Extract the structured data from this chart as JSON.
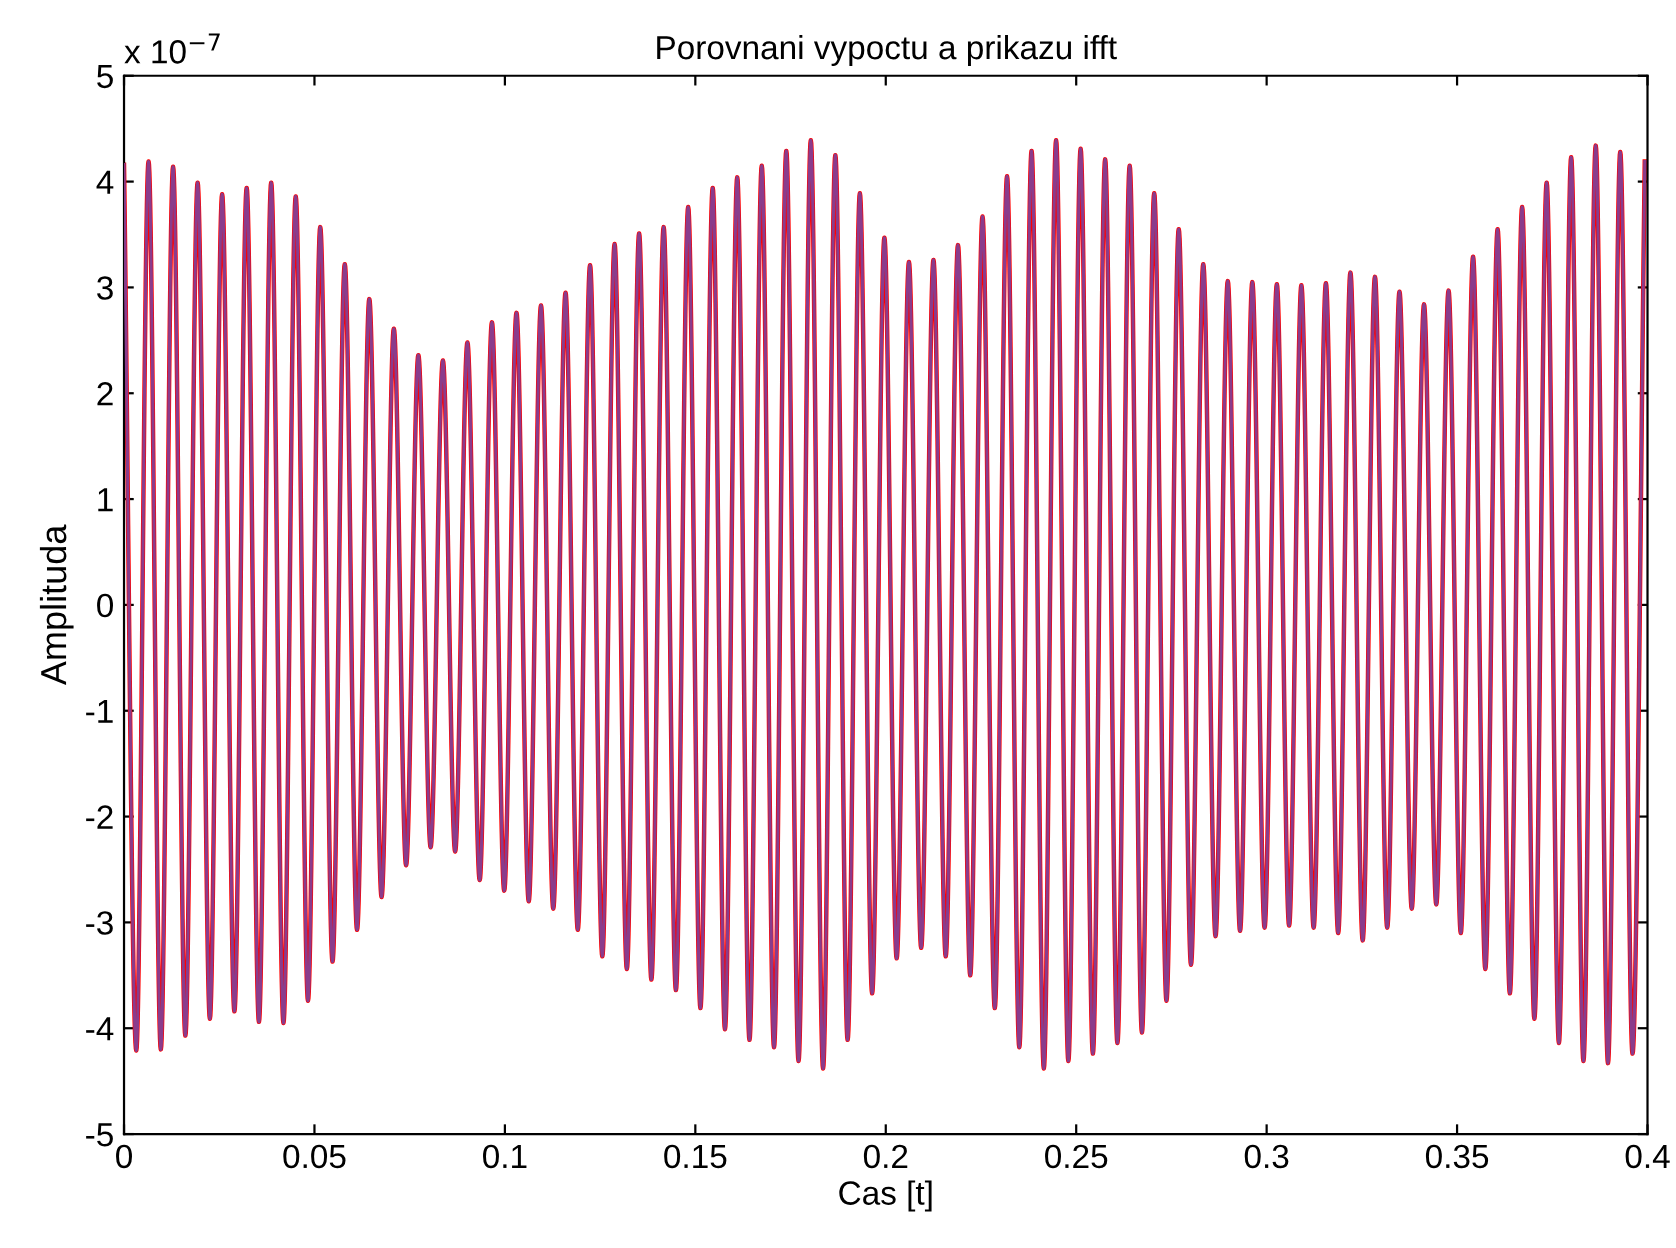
{
  "chart_data": {
    "type": "line",
    "title": "Porovnani vypoctu a prikazu ifft",
    "xlabel": "Cas [t]",
    "ylabel": "Amplituda",
    "annotations": [
      "x 10$^{−7}$"
    ],
    "xlim": [
      0,
      0.4
    ],
    "xticks": [
      0,
      0.05,
      0.1,
      0.15,
      0.2,
      0.25,
      0.3,
      0.35,
      0.4
    ],
    "ylim": [
      -5,
      5
    ],
    "yticks": [
      -5,
      -4,
      -3,
      -2,
      -1,
      0,
      1,
      2,
      3,
      4,
      5
    ],
    "grid": false,
    "legend": false,
    "marker": "none",
    "line_style": "solid",
    "x": [
      0,
      0.00322,
      0.00644,
      0.00966,
      0.01288,
      0.0161,
      0.01932,
      0.02254,
      0.02576,
      0.02898,
      0.0322,
      0.03542,
      0.03864,
      0.04186,
      0.04508,
      0.0483,
      0.05152,
      0.05474,
      0.05796,
      0.06118,
      0.0644,
      0.06762,
      0.07084,
      0.07406,
      0.07728,
      0.0805,
      0.08372,
      0.08694,
      0.09016,
      0.09338,
      0.0966,
      0.09982,
      0.10304,
      0.10626,
      0.10948,
      0.1127,
      0.11592,
      0.11914,
      0.12236,
      0.12558,
      0.1288,
      0.13202,
      0.13524,
      0.13846,
      0.14168,
      0.1449,
      0.14812,
      0.15134,
      0.15456,
      0.15778,
      0.161,
      0.16422,
      0.16744,
      0.17066,
      0.17388,
      0.1771,
      0.18032,
      0.18354,
      0.18676,
      0.18998,
      0.1932,
      0.19642,
      0.19964,
      0.20286,
      0.20608,
      0.2093,
      0.21252,
      0.21574,
      0.21896,
      0.22218,
      0.2254,
      0.22862,
      0.23184,
      0.23506,
      0.23828,
      0.2415,
      0.24472,
      0.24794,
      0.25116,
      0.25438,
      0.2576,
      0.26082,
      0.26404,
      0.26726,
      0.27048,
      0.2737,
      0.27692,
      0.28014,
      0.28336,
      0.28658,
      0.2898,
      0.29302,
      0.29624,
      0.29946,
      0.30268,
      0.3059,
      0.30912,
      0.31234,
      0.31556,
      0.31878,
      0.322,
      0.32522,
      0.32844,
      0.33166,
      0.33488,
      0.3381,
      0.34132,
      0.34454,
      0.34776,
      0.35098,
      0.3542,
      0.35742,
      0.36064,
      0.36386,
      0.36708,
      0.3703,
      0.37352,
      0.37674,
      0.37996,
      0.38318,
      0.3864,
      0.38962,
      0.39284,
      0.39606,
      0.39928
    ],
    "series": [
      {
        "color": "#ff0000",
        "values": [
          4.16,
          -4.21,
          4.19,
          -4.2,
          4.14,
          -4.07,
          3.99,
          -3.91,
          3.88,
          -3.84,
          3.94,
          -3.94,
          3.99,
          -3.95,
          3.86,
          -3.74,
          3.57,
          -3.37,
          3.22,
          -3.07,
          2.89,
          -2.76,
          2.61,
          -2.46,
          2.36,
          -2.29,
          2.31,
          -2.33,
          2.48,
          -2.6,
          2.67,
          -2.7,
          2.76,
          -2.8,
          2.83,
          -2.87,
          2.95,
          -3.07,
          3.21,
          -3.32,
          3.41,
          -3.44,
          3.51,
          -3.54,
          3.57,
          -3.64,
          3.76,
          -3.81,
          3.94,
          -4.01,
          4.04,
          -4.11,
          4.15,
          -4.18,
          4.29,
          -4.31,
          4.39,
          -4.38,
          4.25,
          -4.11,
          3.89,
          -3.67,
          3.47,
          -3.34,
          3.24,
          -3.24,
          3.26,
          -3.32,
          3.4,
          -3.5,
          3.67,
          -3.81,
          4.05,
          -4.18,
          4.29,
          -4.38,
          4.39,
          -4.31,
          4.31,
          -4.24,
          4.21,
          -4.14,
          4.15,
          -4.04,
          3.89,
          -3.74,
          3.55,
          -3.4,
          3.22,
          -3.13,
          3.06,
          -3.08,
          3.05,
          -3.05,
          3.03,
          -3.03,
          3.02,
          -3.05,
          3.04,
          -3.1,
          3.14,
          -3.17,
          3.1,
          -3.05,
          2.96,
          -2.87,
          2.84,
          -2.83,
          2.97,
          -3.1,
          3.29,
          -3.44,
          3.55,
          -3.67,
          3.76,
          -3.91,
          3.99,
          -4.14,
          4.23,
          -4.31,
          4.34,
          -4.33,
          4.28,
          -4.24,
          4.19
        ]
      },
      {
        "color": "#8a3c8c",
        "values": [
          4.16,
          -4.21,
          4.19,
          -4.2,
          4.14,
          -4.07,
          3.99,
          -3.91,
          3.88,
          -3.84,
          3.94,
          -3.94,
          3.99,
          -3.95,
          3.86,
          -3.74,
          3.57,
          -3.37,
          3.22,
          -3.07,
          2.89,
          -2.76,
          2.61,
          -2.46,
          2.36,
          -2.29,
          2.31,
          -2.33,
          2.48,
          -2.6,
          2.67,
          -2.7,
          2.76,
          -2.8,
          2.83,
          -2.87,
          2.95,
          -3.07,
          3.21,
          -3.32,
          3.41,
          -3.44,
          3.51,
          -3.54,
          3.57,
          -3.64,
          3.76,
          -3.81,
          3.94,
          -4.01,
          4.04,
          -4.11,
          4.15,
          -4.18,
          4.29,
          -4.31,
          4.39,
          -4.38,
          4.25,
          -4.11,
          3.89,
          -3.67,
          3.47,
          -3.34,
          3.24,
          -3.24,
          3.26,
          -3.32,
          3.4,
          -3.5,
          3.67,
          -3.81,
          4.05,
          -4.18,
          4.29,
          -4.38,
          4.39,
          -4.31,
          4.31,
          -4.24,
          4.21,
          -4.14,
          4.15,
          -4.04,
          3.89,
          -3.74,
          3.55,
          -3.4,
          3.22,
          -3.13,
          3.06,
          -3.08,
          3.05,
          -3.05,
          3.03,
          -3.03,
          3.02,
          -3.05,
          3.04,
          -3.1,
          3.14,
          -3.17,
          3.1,
          -3.05,
          2.96,
          -2.87,
          2.84,
          -2.83,
          2.97,
          -3.1,
          3.29,
          -3.44,
          3.55,
          -3.67,
          3.76,
          -3.91,
          3.99,
          -4.14,
          4.23,
          -4.31,
          4.34,
          -4.33,
          4.28,
          -4.24,
          4.19
        ]
      }
    ]
  }
}
